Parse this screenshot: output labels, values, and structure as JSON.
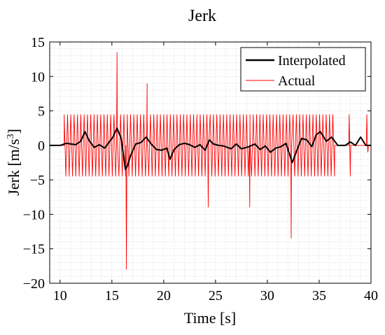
{
  "chart_data": {
    "type": "line",
    "title": "Jerk",
    "xlabel": "Time [s]",
    "ylabel": "Jerk [m/s",
    "ylabel_superscript": "3",
    "ylabel_close": "]",
    "xlim": [
      9,
      40
    ],
    "ylim": [
      -20,
      15
    ],
    "x_ticks": [
      10,
      15,
      20,
      25,
      30,
      35,
      40
    ],
    "x_tick_labels": [
      "10",
      "15",
      "20",
      "25",
      "30",
      "35",
      "40"
    ],
    "y_ticks": [
      15,
      10,
      5,
      0,
      -5,
      -10,
      -15,
      -20
    ],
    "y_tick_labels": [
      "15",
      "10",
      "5",
      "0",
      "−5",
      "−10",
      "−15",
      "−20"
    ],
    "grid": "minor dotted",
    "legend_position": "top-right",
    "series": [
      {
        "name": "Interpolated",
        "color": "#000000",
        "x": [
          9.0,
          10.0,
          10.6,
          11.5,
          12.0,
          12.4,
          12.8,
          13.3,
          13.8,
          14.3,
          14.8,
          15.1,
          15.5,
          15.9,
          16.3,
          16.5,
          16.8,
          17.3,
          17.8,
          18.3,
          18.8,
          19.3,
          19.8,
          20.3,
          20.6,
          21.0,
          21.5,
          22.0,
          22.5,
          23.0,
          23.5,
          24.0,
          24.4,
          24.8,
          25.3,
          25.8,
          26.5,
          27.0,
          27.5,
          28.2,
          28.8,
          29.3,
          29.8,
          30.3,
          30.8,
          31.3,
          31.8,
          32.4,
          32.9,
          33.3,
          33.8,
          34.3,
          34.7,
          35.1,
          35.7,
          36.2,
          36.8,
          37.5,
          38.0,
          38.5,
          39.0,
          39.5,
          40.0
        ],
        "y": [
          0,
          0,
          0.3,
          0.1,
          0.6,
          2.0,
          0.7,
          -0.3,
          0.1,
          -0.4,
          0.6,
          1.2,
          2.5,
          1.0,
          -3.5,
          -3.0,
          -1.5,
          0.2,
          0.4,
          1.2,
          0.2,
          -0.6,
          -0.7,
          -0.4,
          -2.0,
          -0.6,
          0.1,
          0.3,
          0.1,
          -0.3,
          0.1,
          -0.7,
          0.8,
          0.2,
          0.0,
          -0.1,
          -0.5,
          0.2,
          -0.5,
          -0.2,
          0.2,
          -0.6,
          -0.1,
          -1.0,
          -0.4,
          -0.2,
          0.3,
          -2.5,
          -0.5,
          1.0,
          0.8,
          -0.2,
          1.5,
          2.0,
          0.6,
          1.2,
          0.0,
          0.0,
          0.5,
          0.0,
          1.2,
          0.0,
          0.0
        ]
      },
      {
        "name": "Actual",
        "color": "#ff0000",
        "active_ranges": [
          [
            10.4,
            36.5
          ]
        ],
        "oscillation_amplitude": 4.5,
        "oscillation_period_s": 0.32,
        "spikes": [
          {
            "x": 15.5,
            "y": 13.5
          },
          {
            "x": 16.4,
            "y": -18.0
          },
          {
            "x": 18.4,
            "y": 9.0
          },
          {
            "x": 24.3,
            "y": -9.0
          },
          {
            "x": 28.3,
            "y": -9.0
          },
          {
            "x": 32.3,
            "y": -13.5
          },
          {
            "x": 37.9,
            "y": 4.5
          },
          {
            "x": 38.0,
            "y": -4.5
          },
          {
            "x": 39.6,
            "y": 4.5
          },
          {
            "x": 39.7,
            "y": -1.0
          }
        ]
      }
    ]
  }
}
